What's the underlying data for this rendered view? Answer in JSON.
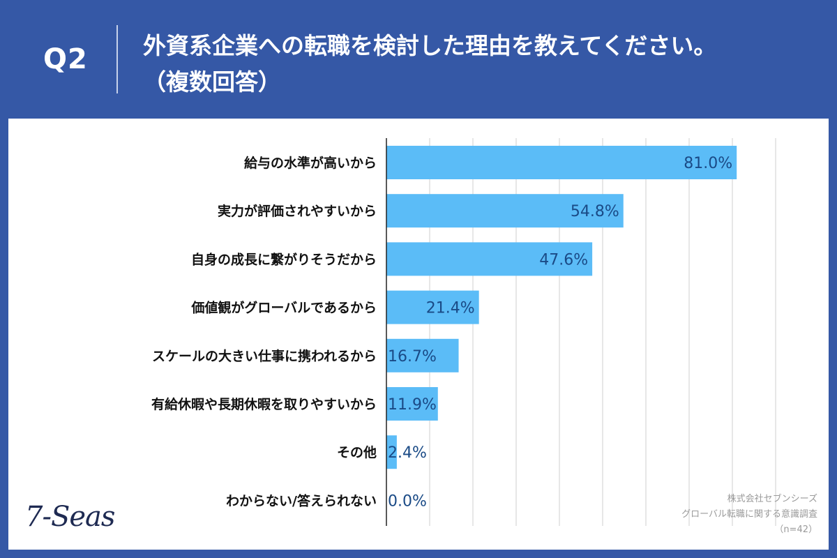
{
  "header": {
    "question_number": "Q2",
    "title_line1": "外資系企業への転職を検討した理由を教えてください。",
    "title_line2": "（複数回答）"
  },
  "footer": {
    "logo_text": "7-Seas",
    "source_line1": "株式会社セブンシーズ",
    "source_line2": "グローバル転職に関する意識調査",
    "source_line3": "（n=42）"
  },
  "colors": {
    "header_bg": "#3558a6",
    "bar": "#5bbcf7",
    "value_label": "#1a4a86"
  },
  "chart_data": {
    "type": "bar",
    "orientation": "horizontal",
    "categories": [
      "給与の水準が高いから",
      "実力が評価されやすいから",
      "自身の成長に繋がりそうだから",
      "価値観がグローバルであるから",
      "スケールの大きい仕事に携われるから",
      "有給休暇や長期休暇を取りやすいから",
      "その他",
      "わからない/答えられない"
    ],
    "values": [
      81.0,
      54.8,
      47.6,
      21.4,
      16.7,
      11.9,
      2.4,
      0.0
    ],
    "value_labels": [
      "81.0%",
      "54.8%",
      "47.6%",
      "21.4%",
      "16.7%",
      "11.9%",
      "2.4%",
      "0.0%"
    ],
    "xlim": [
      0,
      90
    ],
    "grid": true
  }
}
